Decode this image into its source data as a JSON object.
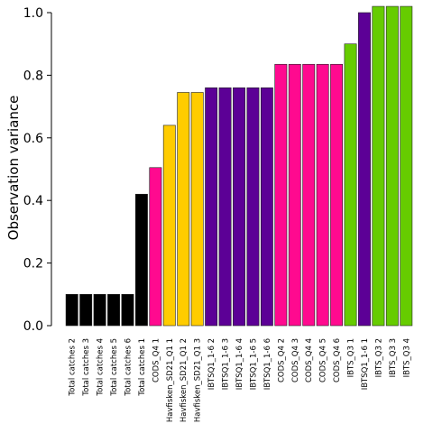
{
  "chart_data": {
    "type": "bar",
    "title": "",
    "xlabel": "",
    "ylabel": "Observation variance",
    "ylim": [
      0,
      1.0
    ],
    "yticks": [
      "0.0",
      "0.2",
      "0.4",
      "0.6",
      "0.8",
      "1.0"
    ],
    "grid": false,
    "colors": {
      "Total catches": "#000000",
      "CODS_Q4": "#ff0a8f",
      "Havfisken_SD21_Q1": "#ffcc00",
      "IBTSQ1": "#5c0096",
      "IBTS_Q3": "#66cc00"
    },
    "categories": [
      "Total catches 2",
      "Total catches 3",
      "Total catches 4",
      "Total catches 5",
      "Total catches 6",
      "Total catches 1",
      "CODS_Q4 1",
      "Havfisken_SD21_Q1 1",
      "Havfisken_SD21_Q1 2",
      "Havfisken_SD21_Q1 3",
      "IBTSQ1_1-6 2",
      "IBTSQ1_1-6 3",
      "IBTSQ1_1-6 4",
      "IBTSQ1_1-6 5",
      "IBTSQ1_1-6 6",
      "CODS_Q4 2",
      "CODS_Q4 3",
      "CODS_Q4 4",
      "CODS_Q4 5",
      "CODS_Q4 6",
      "IBTS_Q3 1",
      "IBTSQ1_1-6 1",
      "IBTS_Q3 2",
      "IBTS_Q3 3",
      "IBTS_Q3 4"
    ],
    "values": [
      0.1,
      0.1,
      0.1,
      0.1,
      0.1,
      0.42,
      0.505,
      0.64,
      0.745,
      0.745,
      0.76,
      0.76,
      0.76,
      0.76,
      0.76,
      0.835,
      0.835,
      0.835,
      0.835,
      0.835,
      0.9,
      1.0,
      1.02,
      1.02,
      1.02
    ],
    "groups": [
      "Total catches",
      "Total catches",
      "Total catches",
      "Total catches",
      "Total catches",
      "Total catches",
      "CODS_Q4",
      "Havfisken_SD21_Q1",
      "Havfisken_SD21_Q1",
      "Havfisken_SD21_Q1",
      "IBTSQ1",
      "IBTSQ1",
      "IBTSQ1",
      "IBTSQ1",
      "IBTSQ1",
      "CODS_Q4",
      "CODS_Q4",
      "CODS_Q4",
      "CODS_Q4",
      "CODS_Q4",
      "IBTS_Q3",
      "IBTSQ1",
      "IBTS_Q3",
      "IBTS_Q3",
      "IBTS_Q3"
    ]
  }
}
